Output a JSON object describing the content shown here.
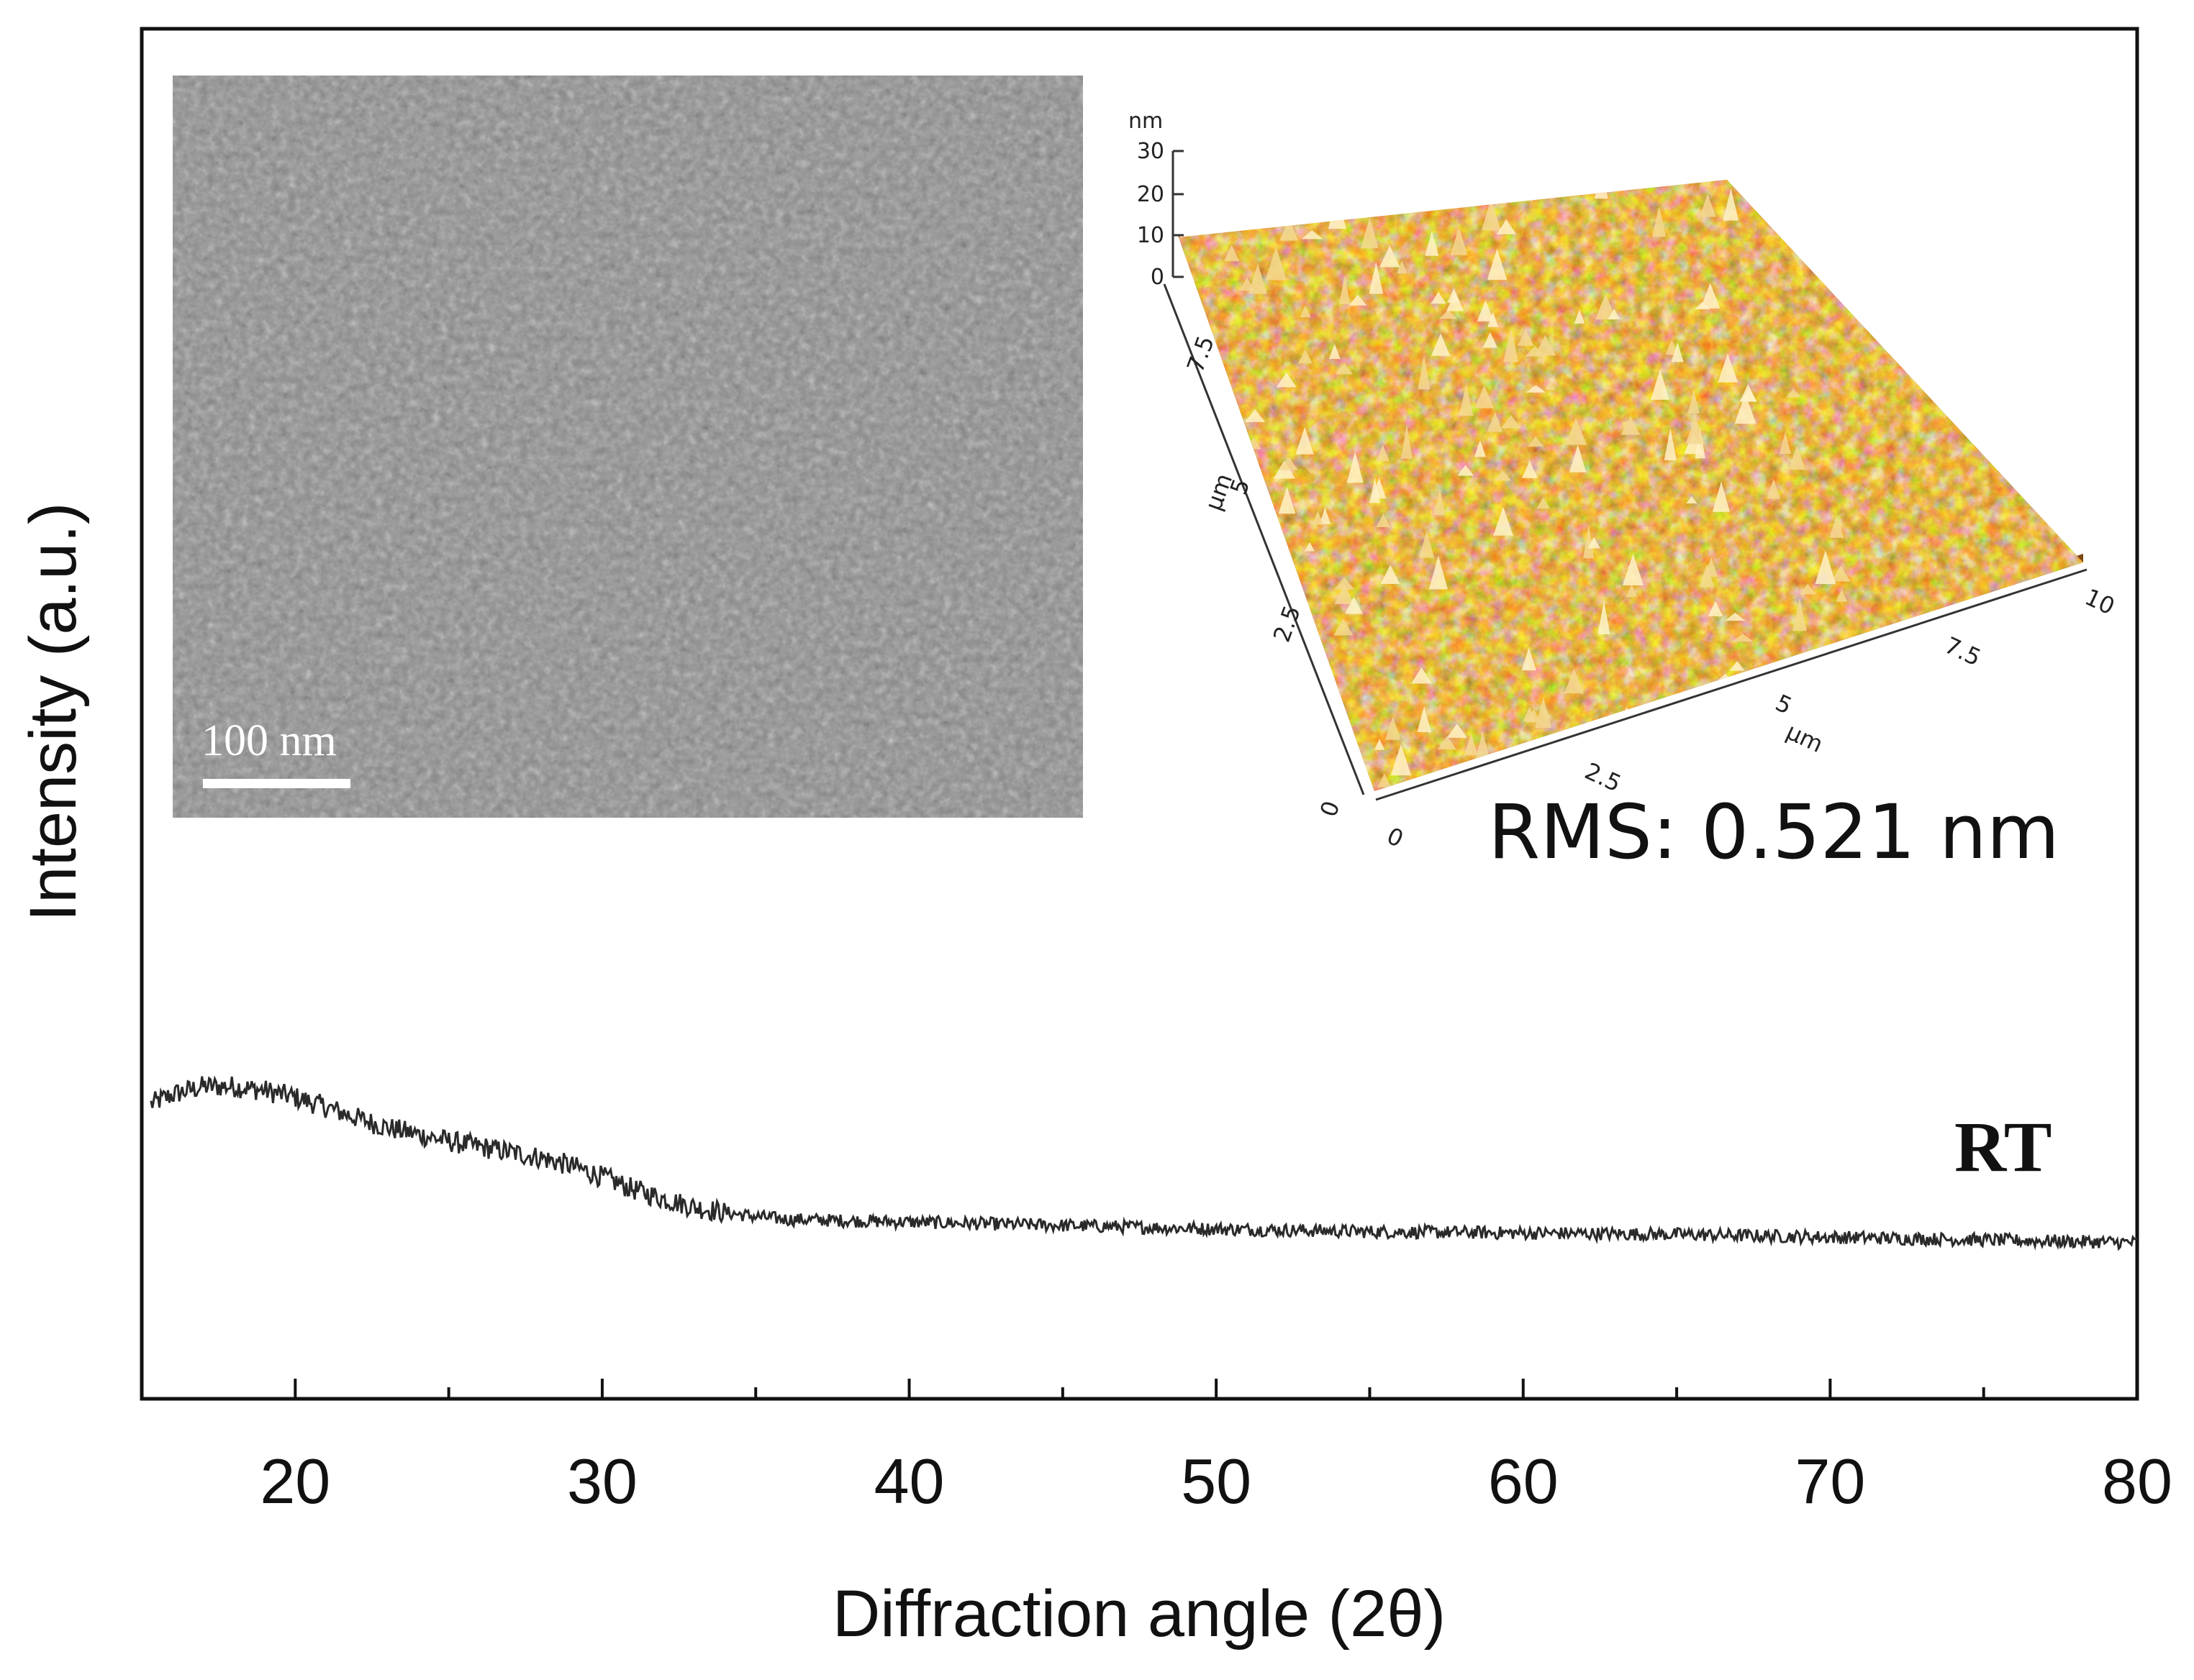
{
  "chart_data": {
    "type": "line",
    "title": "",
    "xlabel": "Diffraction angle (2θ)",
    "ylabel": "Intensity (a.u.)",
    "xlim": [
      15,
      80
    ],
    "ylim": [
      0,
      100
    ],
    "xticks": [
      20,
      30,
      40,
      50,
      60,
      70,
      80
    ],
    "x_minor_step": 5,
    "y_ticks_shown": false,
    "grid": false,
    "series": [
      {
        "name": "RT",
        "label": "RT",
        "color": "#2a2a2a",
        "noise_amplitude": 0.8,
        "x": [
          15.3,
          16,
          17,
          18,
          19,
          20,
          21,
          22,
          23,
          24,
          25,
          26,
          27,
          28,
          29,
          30,
          31,
          32,
          33,
          34,
          35,
          36,
          38,
          40,
          42,
          44,
          46,
          48,
          50,
          55,
          60,
          65,
          70,
          75,
          80
        ],
        "y": [
          21.5,
          22.2,
          22.8,
          22.8,
          22.5,
          22.0,
          21.3,
          20.5,
          19.8,
          19.3,
          18.8,
          18.4,
          18.0,
          17.6,
          17.0,
          16.2,
          15.3,
          14.6,
          14.0,
          13.6,
          13.3,
          13.1,
          13.0,
          12.9,
          12.8,
          12.7,
          12.6,
          12.5,
          12.4,
          12.2,
          12.1,
          12.0,
          11.8,
          11.6,
          11.4
        ]
      }
    ]
  },
  "insets": {
    "sem": {
      "scale_bar_label": "100 nm"
    },
    "afm": {
      "z_unit": "nm",
      "z_ticks": [
        "30",
        "20",
        "10",
        "0"
      ],
      "y_unit": "µm",
      "y_ticks": [
        "7.5",
        "5",
        "2.5",
        "0"
      ],
      "x_unit": "µm",
      "x_ticks": [
        "0",
        "2.5",
        "5",
        "7.5",
        "10"
      ],
      "rms_label": "RMS: 0.521 nm"
    }
  },
  "colors": {
    "axis": "#111111",
    "sem_gray": "#8c8c8c",
    "afm_dark": "#3a1800",
    "afm_mid": "#c9700f",
    "afm_light": "#f0c060",
    "afm_peak": "#fff2c8"
  }
}
